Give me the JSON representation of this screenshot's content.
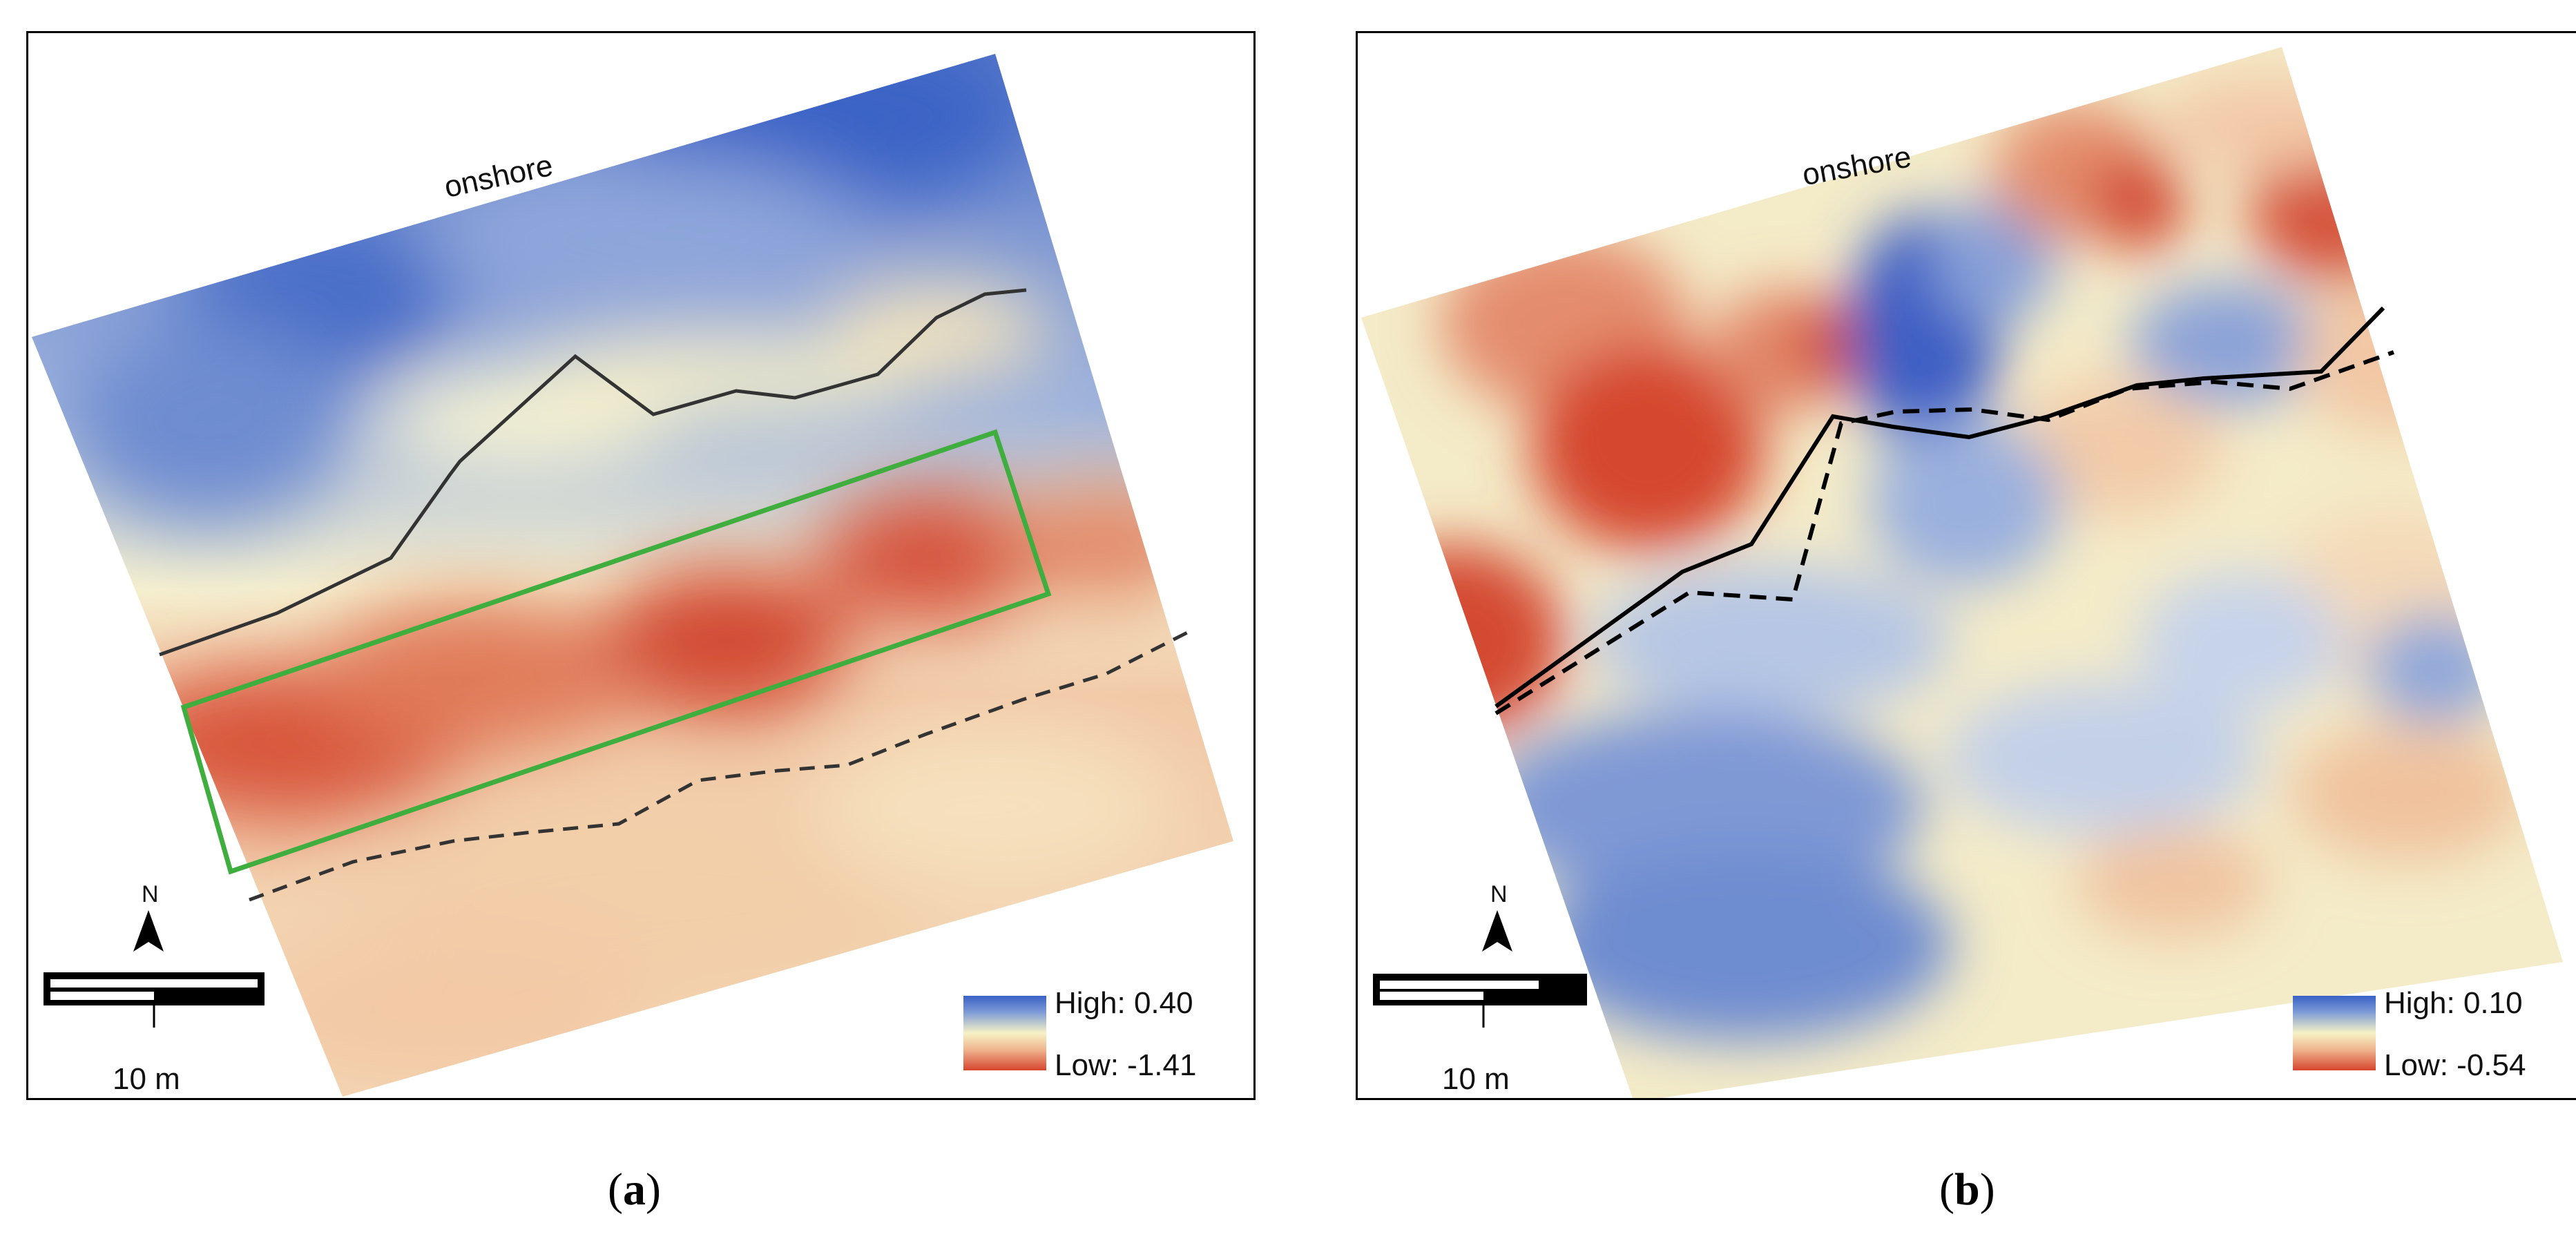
{
  "panels": [
    {
      "id": "a",
      "caption": "a",
      "onshore_label": "onshore",
      "legend": {
        "high": "High: 0.40",
        "low": "Low: -1.41"
      },
      "scale_label": "10 m",
      "north_label": "N",
      "lines": {
        "solid_color": "#333333",
        "dashed_color": "#333333",
        "box_color": "#3fae3f"
      }
    },
    {
      "id": "b",
      "caption": "b",
      "onshore_label": "onshore",
      "legend": {
        "high": "High: 0.10",
        "low": "Low: -0.54"
      },
      "scale_label": "10 m",
      "north_label": "N",
      "lines": {
        "solid_color": "#000000",
        "dashed_color": "#000000"
      }
    }
  ],
  "colors": {
    "high": "#3a62c6",
    "mid": "#f6f2c5",
    "low": "#d6452d"
  }
}
